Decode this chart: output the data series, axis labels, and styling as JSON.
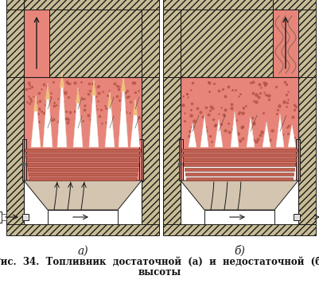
{
  "title_line1": "Рис.  34.  Топливник  достаточной  (а)  и  недостаточной  (б)",
  "title_line2": "высоты",
  "label_a": "а)",
  "label_b": "б)",
  "bg_color": "#ffffff",
  "hatch_color": "#c8bc96",
  "firebox_fill": "#e8857a",
  "firebox_fill2": "#e07060",
  "grate_color": "#c06050",
  "ash_color": "#e8d5c0",
  "lc": "#1a1a1a",
  "arrow_color": "#222222",
  "smoke_color": "#b05040",
  "flame_white": "#f8f8f0",
  "title_fontsize": 8.5,
  "label_fontsize": 10
}
